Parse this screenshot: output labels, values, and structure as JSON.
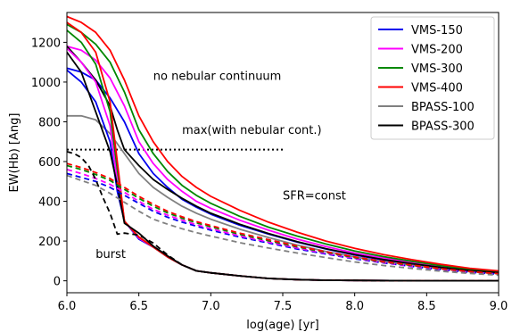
{
  "chart_data": {
    "type": "line",
    "xlabel": "log(age) [yr]",
    "ylabel": "EW(Hb) [Ang]",
    "xlim": [
      6.0,
      9.0
    ],
    "ylim": [
      -60,
      1350
    ],
    "xticks": [
      6.0,
      6.5,
      7.0,
      7.5,
      8.0,
      8.5,
      9.0
    ],
    "xtick_labels": [
      "6.0",
      "6.5",
      "7.0",
      "7.5",
      "8.0",
      "8.5",
      "9.0"
    ],
    "yticks": [
      0,
      200,
      400,
      600,
      800,
      1000,
      1200
    ],
    "ytick_labels": [
      "0",
      "200",
      "400",
      "600",
      "800",
      "1000",
      "1200"
    ],
    "grid": false,
    "legend_position": "top-right",
    "legend": [
      {
        "name": "VMS-150",
        "color": "#0000ee"
      },
      {
        "name": "VMS-200",
        "color": "#ff00ff"
      },
      {
        "name": "VMS-300",
        "color": "#008800"
      },
      {
        "name": "VMS-400",
        "color": "#ff0000"
      },
      {
        "name": "BPASS-100",
        "color": "#808080"
      },
      {
        "name": "BPASS-300",
        "color": "#000000"
      }
    ],
    "annotations": [
      {
        "text": "no nebular continuum",
        "x": 6.6,
        "y": 1010
      },
      {
        "text": "max(with nebular cont.)",
        "x": 6.8,
        "y": 740
      },
      {
        "text": "SFR=const",
        "x": 7.5,
        "y": 410
      },
      {
        "text": "burst",
        "x": 6.2,
        "y": 115
      }
    ],
    "reference_line": {
      "x": [
        6.0,
        7.5
      ],
      "y": [
        660,
        660
      ],
      "color": "#000000",
      "style": "dotted"
    },
    "series": [
      {
        "id": "vms150-const",
        "color": "#0000ee",
        "style": "solid",
        "x": [
          6.0,
          6.1,
          6.2,
          6.3,
          6.4,
          6.5,
          6.6,
          6.7,
          6.8,
          6.9,
          7.0,
          7.2,
          7.4,
          7.6,
          7.8,
          8.0,
          8.2,
          8.4,
          8.6,
          8.8,
          9.0
        ],
        "y": [
          1070,
          1050,
          1010,
          920,
          800,
          640,
          540,
          470,
          410,
          370,
          335,
          280,
          235,
          195,
          160,
          130,
          105,
          85,
          65,
          50,
          40
        ]
      },
      {
        "id": "vms200-const",
        "color": "#ff00ff",
        "style": "solid",
        "x": [
          6.0,
          6.1,
          6.2,
          6.3,
          6.4,
          6.5,
          6.6,
          6.7,
          6.8,
          6.9,
          7.0,
          7.2,
          7.4,
          7.6,
          7.8,
          8.0,
          8.2,
          8.4,
          8.6,
          8.8,
          9.0
        ],
        "y": [
          1180,
          1160,
          1110,
          1020,
          880,
          700,
          590,
          510,
          450,
          400,
          365,
          305,
          255,
          210,
          172,
          140,
          115,
          92,
          72,
          55,
          43
        ]
      },
      {
        "id": "vms300-const",
        "color": "#008800",
        "style": "solid",
        "x": [
          6.0,
          6.1,
          6.2,
          6.3,
          6.4,
          6.5,
          6.6,
          6.7,
          6.8,
          6.9,
          7.0,
          7.2,
          7.4,
          7.6,
          7.8,
          8.0,
          8.2,
          8.4,
          8.6,
          8.8,
          9.0
        ],
        "y": [
          1290,
          1250,
          1190,
          1100,
          950,
          760,
          640,
          550,
          480,
          430,
          390,
          325,
          270,
          225,
          185,
          150,
          122,
          98,
          76,
          58,
          45
        ]
      },
      {
        "id": "vms400-const",
        "color": "#ff0000",
        "style": "solid",
        "x": [
          6.0,
          6.1,
          6.2,
          6.3,
          6.4,
          6.5,
          6.6,
          6.7,
          6.8,
          6.9,
          7.0,
          7.2,
          7.4,
          7.6,
          7.8,
          8.0,
          8.2,
          8.4,
          8.6,
          8.8,
          9.0
        ],
        "y": [
          1330,
          1300,
          1250,
          1160,
          1010,
          830,
          700,
          600,
          525,
          470,
          425,
          355,
          295,
          245,
          200,
          163,
          132,
          106,
          83,
          63,
          50
        ]
      },
      {
        "id": "bpass100-const",
        "color": "#808080",
        "style": "solid",
        "x": [
          6.0,
          6.1,
          6.2,
          6.3,
          6.4,
          6.5,
          6.6,
          6.7,
          6.8,
          6.9,
          7.0,
          7.2,
          7.4,
          7.6,
          7.8,
          8.0,
          8.2,
          8.4,
          8.6,
          8.8,
          9.0
        ],
        "y": [
          830,
          830,
          810,
          740,
          640,
          540,
          470,
          420,
          375,
          340,
          310,
          260,
          218,
          180,
          148,
          120,
          97,
          78,
          61,
          47,
          37
        ]
      },
      {
        "id": "bpass300-const",
        "color": "#000000",
        "style": "solid",
        "x": [
          6.0,
          6.1,
          6.2,
          6.3,
          6.35,
          6.4,
          6.5,
          6.6,
          6.7,
          6.8,
          6.9,
          7.0,
          7.2,
          7.4,
          7.6,
          7.8,
          8.0,
          8.2,
          8.4,
          8.6,
          8.8,
          9.0
        ],
        "y": [
          1180,
          1100,
          1010,
          880,
          760,
          660,
          580,
          510,
          460,
          415,
          375,
          340,
          285,
          238,
          197,
          162,
          132,
          107,
          86,
          67,
          52,
          41
        ]
      },
      {
        "id": "vms150-burst-steep",
        "color": "#0000ee",
        "style": "solid",
        "x": [
          6.0,
          6.1,
          6.2,
          6.3,
          6.35,
          6.4,
          6.5,
          6.6,
          6.7,
          6.8,
          6.9,
          7.0,
          7.2,
          7.4,
          7.6,
          7.8,
          8.0,
          8.5,
          9.0
        ],
        "y": [
          1060,
          1000,
          900,
          700,
          450,
          300,
          210,
          170,
          120,
          80,
          50,
          40,
          25,
          12,
          6,
          3,
          2,
          0,
          0
        ]
      },
      {
        "id": "vms200-burst-steep",
        "color": "#ff00ff",
        "style": "solid",
        "x": [
          6.0,
          6.1,
          6.2,
          6.3,
          6.35,
          6.4,
          6.5,
          6.6,
          6.7,
          6.8,
          6.9,
          7.0,
          7.2,
          7.4,
          7.6,
          7.8,
          8.0,
          8.5,
          9.0
        ],
        "y": [
          1170,
          1100,
          1000,
          780,
          500,
          300,
          215,
          170,
          120,
          80,
          50,
          40,
          25,
          12,
          6,
          3,
          2,
          0,
          0
        ]
      },
      {
        "id": "vms300-burst-steep",
        "color": "#008800",
        "style": "solid",
        "x": [
          6.0,
          6.1,
          6.2,
          6.3,
          6.35,
          6.4,
          6.5,
          6.6,
          6.7,
          6.8,
          6.9,
          7.0,
          7.2,
          7.4,
          7.6,
          7.8,
          8.0,
          8.5,
          9.0
        ],
        "y": [
          1260,
          1200,
          1090,
          850,
          560,
          300,
          220,
          170,
          120,
          80,
          50,
          40,
          25,
          12,
          6,
          3,
          2,
          0,
          0
        ]
      },
      {
        "id": "vms400-burst-steep",
        "color": "#ff0000",
        "style": "solid",
        "x": [
          6.0,
          6.1,
          6.2,
          6.3,
          6.35,
          6.4,
          6.5,
          6.6,
          6.7,
          6.8,
          6.9,
          7.0,
          7.2,
          7.4,
          7.6,
          7.8,
          8.0,
          8.5,
          9.0
        ],
        "y": [
          1300,
          1250,
          1150,
          900,
          600,
          300,
          220,
          170,
          120,
          80,
          50,
          40,
          25,
          12,
          6,
          3,
          2,
          0,
          0
        ]
      },
      {
        "id": "bpass300-burst-steep",
        "color": "#000000",
        "style": "solid",
        "x": [
          6.0,
          6.1,
          6.2,
          6.3,
          6.35,
          6.4,
          6.5,
          6.6,
          6.7,
          6.8,
          6.9,
          7.0,
          7.2,
          7.4,
          7.6,
          7.8,
          8.0,
          8.5,
          9.0
        ],
        "y": [
          1150,
          1050,
          850,
          650,
          480,
          290,
          240,
          175,
          125,
          80,
          50,
          40,
          25,
          12,
          6,
          3,
          2,
          0,
          0
        ]
      },
      {
        "id": "vms150-burst",
        "color": "#0000ee",
        "style": "dashed",
        "x": [
          6.0,
          6.1,
          6.2,
          6.3,
          6.4,
          6.5,
          6.6,
          6.7,
          6.8,
          6.9,
          7.0,
          7.2,
          7.4,
          7.6,
          7.8,
          8.0,
          8.2,
          8.4,
          8.6,
          8.8,
          9.0
        ],
        "y": [
          540,
          520,
          500,
          470,
          430,
          390,
          350,
          320,
          295,
          275,
          255,
          220,
          190,
          160,
          135,
          110,
          90,
          72,
          56,
          43,
          33
        ]
      },
      {
        "id": "vms200-burst",
        "color": "#ff00ff",
        "style": "dashed",
        "x": [
          6.0,
          6.1,
          6.2,
          6.3,
          6.4,
          6.5,
          6.6,
          6.7,
          6.8,
          6.9,
          7.0,
          7.2,
          7.4,
          7.6,
          7.8,
          8.0,
          8.2,
          8.4,
          8.6,
          8.8,
          9.0
        ],
        "y": [
          560,
          540,
          515,
          485,
          445,
          400,
          360,
          330,
          305,
          282,
          262,
          226,
          195,
          165,
          138,
          113,
          92,
          74,
          58,
          44,
          34
        ]
      },
      {
        "id": "vms300-burst",
        "color": "#008800",
        "style": "dashed",
        "x": [
          6.0,
          6.1,
          6.2,
          6.3,
          6.4,
          6.5,
          6.6,
          6.7,
          6.8,
          6.9,
          7.0,
          7.2,
          7.4,
          7.6,
          7.8,
          8.0,
          8.2,
          8.4,
          8.6,
          8.8,
          9.0
        ],
        "y": [
          580,
          560,
          535,
          505,
          460,
          415,
          375,
          342,
          315,
          292,
          272,
          234,
          202,
          171,
          143,
          117,
          95,
          77,
          60,
          46,
          35
        ]
      },
      {
        "id": "vms400-burst",
        "color": "#ff0000",
        "style": "dashed",
        "x": [
          6.0,
          6.1,
          6.2,
          6.3,
          6.4,
          6.5,
          6.6,
          6.7,
          6.8,
          6.9,
          7.0,
          7.2,
          7.4,
          7.6,
          7.8,
          8.0,
          8.2,
          8.4,
          8.6,
          8.8,
          9.0
        ],
        "y": [
          590,
          570,
          545,
          515,
          470,
          425,
          385,
          350,
          322,
          298,
          278,
          240,
          207,
          175,
          146,
          120,
          97,
          79,
          61,
          47,
          36
        ]
      },
      {
        "id": "bpass100-burst",
        "color": "#808080",
        "style": "dashed",
        "x": [
          6.0,
          6.1,
          6.2,
          6.3,
          6.4,
          6.5,
          6.6,
          6.7,
          6.8,
          6.9,
          7.0,
          7.2,
          7.4,
          7.6,
          7.8,
          8.0,
          8.2,
          8.4,
          8.6,
          8.8,
          9.0
        ],
        "y": [
          530,
          505,
          480,
          440,
          395,
          350,
          310,
          285,
          262,
          242,
          225,
          192,
          165,
          140,
          117,
          95,
          77,
          62,
          48,
          37,
          28
        ]
      },
      {
        "id": "bpass300-burst",
        "color": "#000000",
        "style": "dashed",
        "x": [
          6.0,
          6.05,
          6.1,
          6.15,
          6.2,
          6.25,
          6.3,
          6.35,
          6.4,
          6.5,
          6.6,
          6.7,
          6.8,
          6.9,
          7.0,
          7.2,
          7.4,
          7.6,
          7.8,
          8.0,
          8.2,
          8.4,
          8.6,
          8.8,
          9.0
        ],
        "y": [
          650,
          640,
          620,
          580,
          510,
          420,
          340,
          235,
          240,
          230,
          190,
          130,
          80,
          50,
          40,
          25,
          12,
          6,
          3,
          2,
          0,
          0,
          0,
          0,
          0
        ]
      }
    ]
  }
}
